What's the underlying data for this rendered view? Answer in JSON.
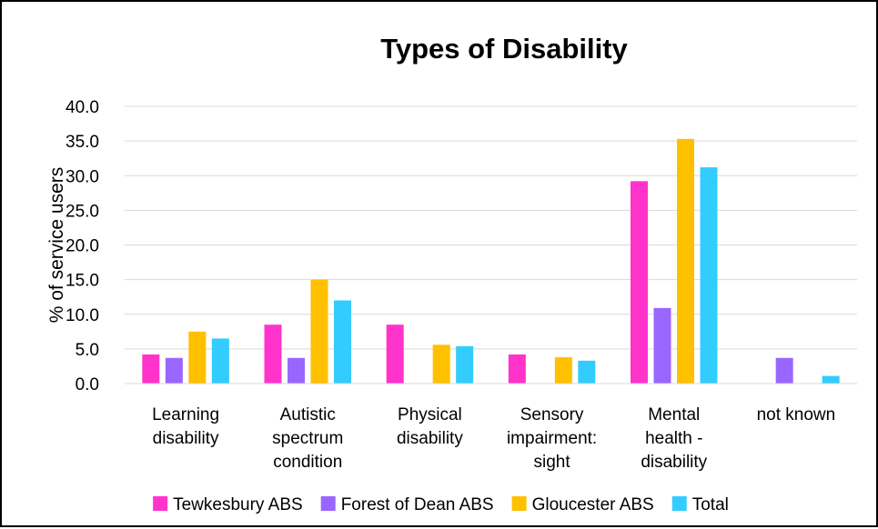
{
  "chart_data": {
    "type": "bar",
    "title": "Types of Disability",
    "ylabel": "% of service users",
    "xlabel": "",
    "ylim": [
      0,
      40
    ],
    "yticks": [
      0,
      5,
      10,
      15,
      20,
      25,
      30,
      35,
      40
    ],
    "ytick_labels": [
      "0.0",
      "5.0",
      "10.0",
      "15.0",
      "20.0",
      "25.0",
      "30.0",
      "35.0",
      "40.0"
    ],
    "grid": true,
    "legend_position": "bottom",
    "categories": [
      [
        "Learning",
        "disability"
      ],
      [
        "Autistic",
        "spectrum",
        "condition"
      ],
      [
        "Physical",
        "disability"
      ],
      [
        "Sensory",
        "impairment:",
        "sight"
      ],
      [
        "Mental",
        "health -",
        "disability"
      ],
      [
        "not known"
      ]
    ],
    "series": [
      {
        "name": "Tewkesbury ABS",
        "color": "#FF33CC",
        "values": [
          4.2,
          8.5,
          8.5,
          4.2,
          29.2,
          0.0
        ]
      },
      {
        "name": "Forest of Dean ABS",
        "color": "#9966FF",
        "values": [
          3.7,
          3.7,
          0.0,
          0.0,
          10.9,
          3.7
        ]
      },
      {
        "name": "Gloucester ABS",
        "color": "#FFC000",
        "values": [
          7.5,
          15.0,
          5.6,
          3.8,
          35.3,
          0.0
        ]
      },
      {
        "name": "Total",
        "color": "#33CCFF",
        "values": [
          6.5,
          12.0,
          5.4,
          3.3,
          31.2,
          1.1
        ]
      }
    ]
  }
}
